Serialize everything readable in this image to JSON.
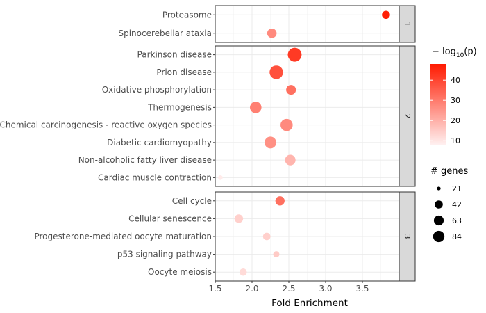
{
  "chart_data": {
    "type": "scatter",
    "xlabel": "Fold Enrichment",
    "xlim": [
      1.5,
      4.0
    ],
    "x_ticks": [
      1.5,
      2.0,
      2.5,
      3.0,
      3.5
    ],
    "x_tick_labels": [
      "1.5",
      "2.0",
      "2.5",
      "3.0",
      "3.5"
    ],
    "grid": true,
    "legend_placement": "right",
    "color_legend": {
      "title_prefix": "− log",
      "title_sub": "10",
      "title_arg": "(p)",
      "range": [
        8,
        48
      ],
      "ticks": [
        10,
        20,
        30,
        40
      ],
      "low_color": "#fff0f0",
      "high_color": "#ff1a00"
    },
    "size_legend": {
      "title": "# genes",
      "range": [
        10,
        90
      ],
      "values": [
        21,
        42,
        63,
        84
      ],
      "labels": [
        "21",
        "42",
        "63",
        "84"
      ]
    },
    "facets": [
      {
        "label": "1",
        "categories": [
          "Proteasome",
          "Spinocerebellar ataxia"
        ],
        "points": [
          {
            "category": "Proteasome",
            "fold_enrichment": 3.82,
            "neg_log10_p": 47,
            "genes": 30
          },
          {
            "category": "Spinocerebellar ataxia",
            "fold_enrichment": 2.27,
            "neg_log10_p": 27,
            "genes": 42
          }
        ]
      },
      {
        "label": "2",
        "categories": [
          "Parkinson disease",
          "Prion disease",
          "Oxidative phosphorylation",
          "Thermogenesis",
          "Chemical carcinogenesis - reactive oxygen species",
          "Diabetic cardiomyopathy",
          "Non-alcoholic fatty liver disease",
          "Cardiac muscle contraction"
        ],
        "points": [
          {
            "category": "Parkinson disease",
            "fold_enrichment": 2.58,
            "neg_log10_p": 42,
            "genes": 90
          },
          {
            "category": "Prion disease",
            "fold_enrichment": 2.33,
            "neg_log10_p": 38,
            "genes": 85
          },
          {
            "category": "Oxidative phosphorylation",
            "fold_enrichment": 2.53,
            "neg_log10_p": 32,
            "genes": 45
          },
          {
            "category": "Thermogenesis",
            "fold_enrichment": 2.05,
            "neg_log10_p": 29,
            "genes": 62
          },
          {
            "category": "Chemical carcinogenesis - reactive oxygen species",
            "fold_enrichment": 2.47,
            "neg_log10_p": 27,
            "genes": 70
          },
          {
            "category": "Diabetic cardiomyopathy",
            "fold_enrichment": 2.25,
            "neg_log10_p": 26,
            "genes": 65
          },
          {
            "category": "Non-alcoholic fatty liver disease",
            "fold_enrichment": 2.52,
            "neg_log10_p": 19,
            "genes": 52
          },
          {
            "category": "Cardiac muscle contraction",
            "fold_enrichment": 1.57,
            "neg_log10_p": 9,
            "genes": 10
          }
        ]
      },
      {
        "label": "3",
        "categories": [
          "Cell cycle",
          "Cellular senescence",
          "Progesterone-mediated oocyte maturation",
          "p53 signaling pathway",
          "Oocyte meiosis"
        ],
        "points": [
          {
            "category": "Cell cycle",
            "fold_enrichment": 2.38,
            "neg_log10_p": 32,
            "genes": 40
          },
          {
            "category": "Cellular senescence",
            "fold_enrichment": 1.82,
            "neg_log10_p": 14,
            "genes": 35
          },
          {
            "category": "Progesterone-mediated oocyte maturation",
            "fold_enrichment": 2.2,
            "neg_log10_p": 14,
            "genes": 26
          },
          {
            "category": "p53 signaling pathway",
            "fold_enrichment": 2.33,
            "neg_log10_p": 15,
            "genes": 18
          },
          {
            "category": "Oocyte meiosis",
            "fold_enrichment": 1.88,
            "neg_log10_p": 12,
            "genes": 25
          }
        ]
      }
    ]
  }
}
